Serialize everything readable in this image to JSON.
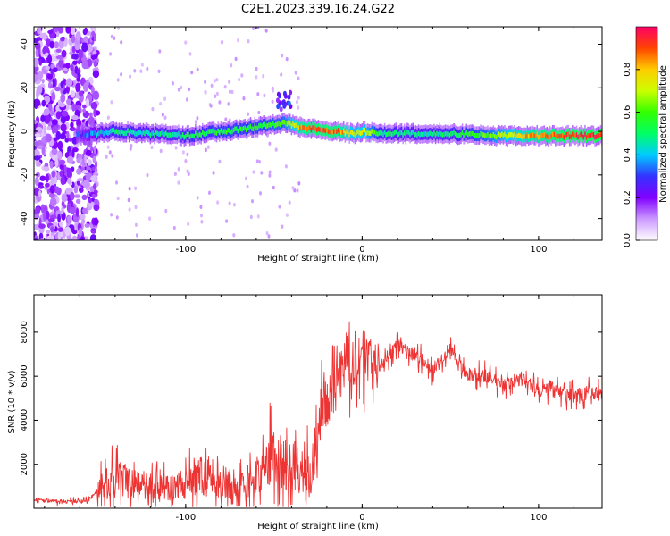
{
  "title": "C2E1.2023.339.16.24.G22",
  "chart_data": [
    {
      "type": "heatmap",
      "xlabel": "Height of straight line (km)",
      "ylabel": "Frequency (Hz)",
      "xlim": [
        -186,
        136
      ],
      "ylim": [
        -50,
        48
      ],
      "x_ticks": [
        -100,
        0,
        100
      ],
      "y_ticks": [
        -40,
        -20,
        0,
        20,
        40
      ],
      "colorbar": {
        "label": "Normalized spectral amplitude",
        "range": [
          0,
          1
        ],
        "ticks": [
          0.0,
          0.2,
          0.4,
          0.6,
          0.8
        ],
        "colors": [
          "#ffffff",
          "#cc99ff",
          "#8000ff",
          "#3333ff",
          "#00ccff",
          "#00ff66",
          "#33ff00",
          "#ccff00",
          "#ffcc00",
          "#ff4400",
          "#ff0066"
        ]
      },
      "ridge": {
        "x": [
          -160,
          -140,
          -120,
          -100,
          -80,
          -60,
          -45,
          -35,
          -25,
          -15,
          -5,
          0,
          10,
          30,
          50,
          70,
          90,
          110,
          136
        ],
        "y": [
          -2,
          0,
          -1,
          -2,
          0,
          2,
          4,
          2,
          1,
          0,
          -1,
          0,
          -1,
          -1,
          -1,
          -2,
          -2,
          -2,
          -2
        ],
        "amplitude": [
          0.3,
          0.5,
          0.45,
          0.5,
          0.55,
          0.55,
          0.6,
          0.85,
          0.9,
          0.88,
          0.7,
          0.75,
          0.5,
          0.45,
          0.5,
          0.6,
          0.8,
          0.9,
          0.95
        ]
      },
      "noise_region_x": [
        -186,
        -150
      ]
    },
    {
      "type": "line",
      "xlabel": "Height of straight line (km)",
      "ylabel": "SNR (10 * v/v)",
      "xlim": [
        -186,
        136
      ],
      "ylim": [
        0,
        9700
      ],
      "x_ticks": [
        -100,
        0,
        100
      ],
      "y_ticks": [
        2000,
        4000,
        6000,
        8000
      ],
      "color": "#ee3333",
      "series": [
        {
          "x": [
            -186,
            -170,
            -155,
            -148,
            -140,
            -130,
            -120,
            -110,
            -100,
            -90,
            -80,
            -70,
            -60,
            -50,
            -40,
            -32,
            -28,
            -25,
            -20,
            -15,
            -10,
            -5,
            0,
            5,
            10,
            15,
            20,
            25,
            30,
            35,
            40,
            45,
            50,
            55,
            60,
            70,
            80,
            90,
            100,
            110,
            120,
            130,
            136
          ],
          "y": [
            400,
            300,
            350,
            1000,
            1300,
            1100,
            1000,
            900,
            1100,
            1500,
            1300,
            1000,
            1400,
            2200,
            1800,
            2000,
            900,
            4000,
            4800,
            5500,
            6500,
            6300,
            7000,
            6700,
            6400,
            7000,
            7400,
            7100,
            7000,
            6700,
            6300,
            6800,
            7300,
            6500,
            6100,
            6000,
            5600,
            5900,
            5400,
            5300,
            5100,
            5300,
            5100
          ]
        }
      ]
    }
  ]
}
